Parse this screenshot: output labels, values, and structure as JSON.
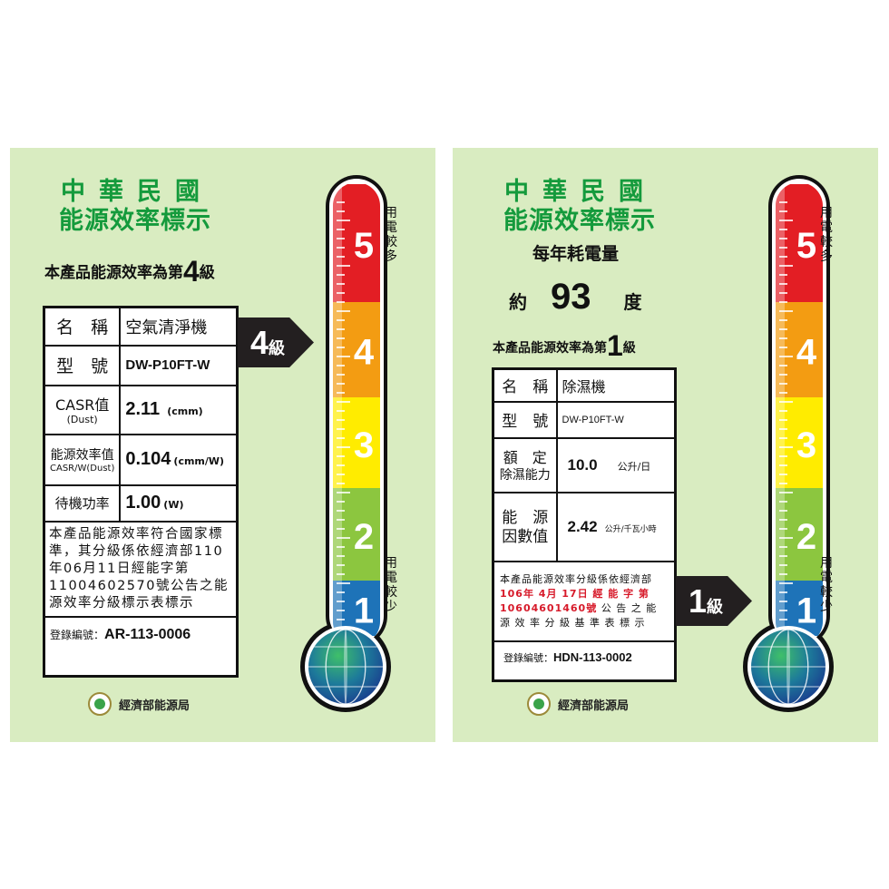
{
  "colors": {
    "title": "#149a3c",
    "grade5": "#e31e24",
    "grade4": "#f39c12",
    "grade3": "#ffec00",
    "grade2": "#8cc63f",
    "grade1": "#1e73b8",
    "background": "#d9ecc1"
  },
  "scale": {
    "grades": [
      "5",
      "4",
      "3",
      "2",
      "1"
    ],
    "more_label": "用電較多",
    "less_label": "用電較少"
  },
  "agency": "經濟部能源局",
  "left": {
    "title_line1": "中華民國",
    "title_line2": "能源效率標示",
    "grade_prefix": "本產品能源效率為第",
    "grade": "4",
    "grade_suffix": "級",
    "rows": [
      {
        "key": "名　稱",
        "value": "空氣清淨機"
      },
      {
        "key": "型　號",
        "value": "DW-P10FT-W"
      },
      {
        "key": "CASR值",
        "sub": "(Dust)",
        "value": "2.11",
        "unit": "(cmm)"
      },
      {
        "key": "能源效率值",
        "sub": "CASR/W(Dust)",
        "value": "0.104",
        "unit": "(cmm/W)"
      },
      {
        "key": "待機功率",
        "value": "1.00",
        "unit": "(W)"
      }
    ],
    "note": "本產品能源效率符合國家標準，其分級係依經濟部110年06月11日經能字第11004602570號公告之能源效率分級標示表標示",
    "reg_label": "登錄編號：",
    "reg_value": "AR-113-0006",
    "arrow_grade": "4",
    "arrow_suffix": "級"
  },
  "right": {
    "title_line1": "中華民國",
    "title_line2": "能源效率標示",
    "annual_label": "每年耗電量",
    "approx": "約",
    "kwh": "93",
    "kwh_unit": "度",
    "grade_prefix": "本產品能源效率為第",
    "grade": "1",
    "grade_suffix": "級",
    "rows": [
      {
        "key": "名　稱",
        "value": "除濕機"
      },
      {
        "key": "型　號",
        "value": "DW-P10FT-W"
      },
      {
        "key": "額　定",
        "sub": "除濕能力",
        "value": "10.0",
        "unit": "公升/日"
      },
      {
        "key": "能　源",
        "sub": "因數值",
        "value": "2.42",
        "unit": "公升/千瓦小時"
      }
    ],
    "note_line1": "本產品能源效率分級係依經濟部",
    "note_red": "106年 4月 17日 經 能 字 第 10604601460號",
    "note_rest": "公 告 之 能 源 效 率 分 級 基 準 表 標 示",
    "reg_label": "登錄編號：",
    "reg_value": "HDN-113-0002",
    "arrow_grade": "1",
    "arrow_suffix": "級"
  }
}
